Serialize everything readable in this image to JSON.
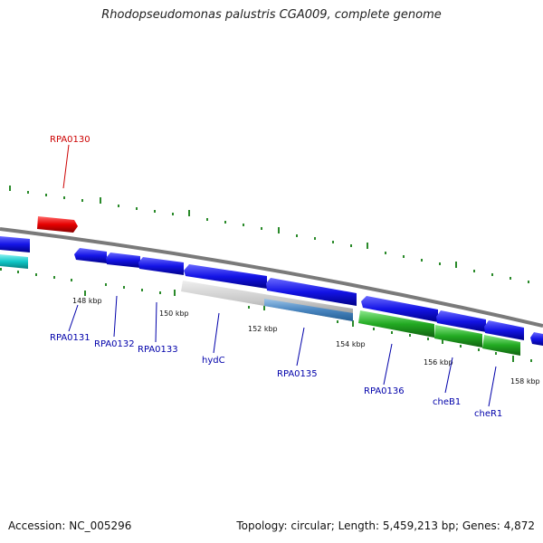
{
  "title": "Rhodopseudomonas palustris CGA009, complete genome",
  "footer": {
    "accession": "Accession: NC_005296",
    "summary": "Topology: circular; Length: 5,459,213 bp; Genes: 4,872"
  },
  "colors": {
    "backbone": "#808080",
    "forward_gene": "#1414e6",
    "reverse_gene": "#1414e6",
    "highlight_gene": "#e60000",
    "cyan_gene": "#10c8c8",
    "grey_gene": "#c0c0c0",
    "steel_gene": "#4a86c0",
    "green_gene": "#22aa22",
    "tick": "#2a8a2a",
    "label_blue": "#0000aa",
    "label_red": "#cc0000"
  },
  "tick_labels": [
    "148 kbp",
    "150 kbp",
    "152 kbp",
    "154 kbp",
    "156 kbp",
    "158 kbp"
  ],
  "gene_labels": [
    {
      "text": "RPA0130",
      "color": "red"
    },
    {
      "text": "RPA0131",
      "color": "blue"
    },
    {
      "text": "RPA0132",
      "color": "blue"
    },
    {
      "text": "RPA0133",
      "color": "blue"
    },
    {
      "text": "hydC",
      "color": "blue"
    },
    {
      "text": "RPA0135",
      "color": "blue"
    },
    {
      "text": "RPA0136",
      "color": "blue"
    },
    {
      "text": "cheB1",
      "color": "blue"
    },
    {
      "text": "cheR1",
      "color": "blue"
    }
  ]
}
